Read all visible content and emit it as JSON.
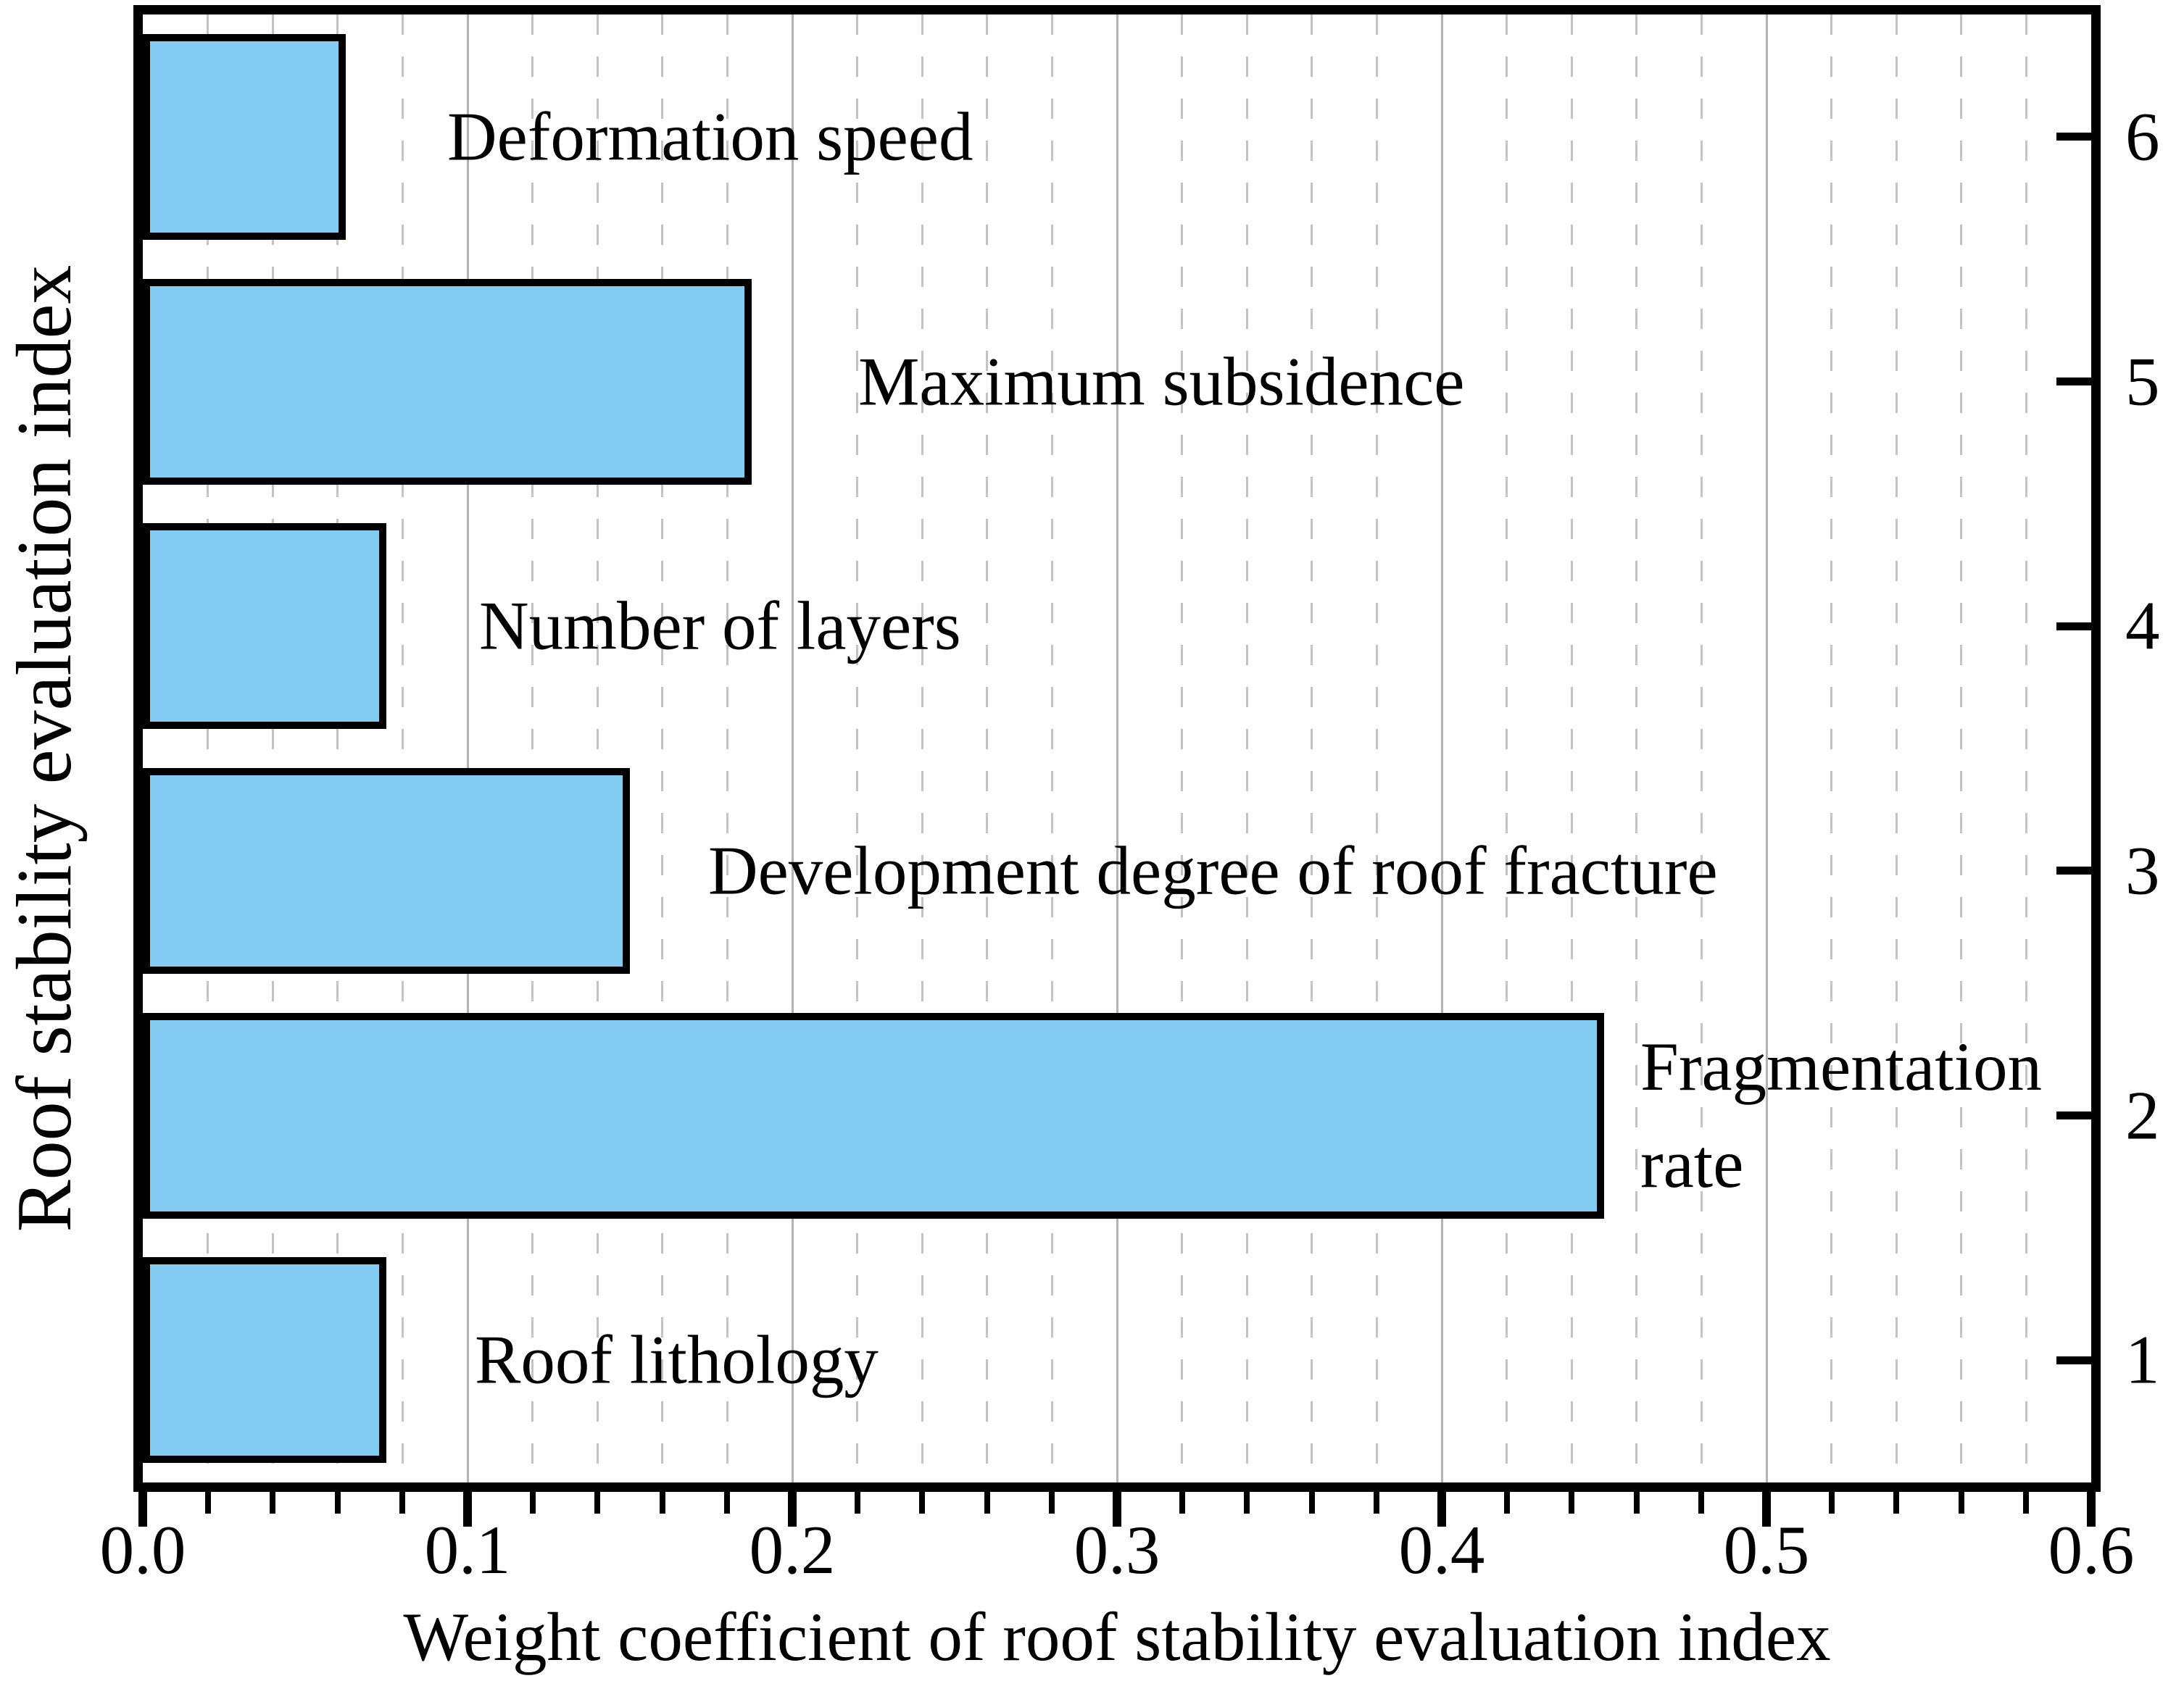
{
  "chart_data": {
    "type": "bar",
    "orientation": "horizontal",
    "title": "",
    "xlabel": "Weight coefficient of roof stability evaluation index",
    "ylabel": "Roof stability evaluation index",
    "xlim": [
      0,
      0.6
    ],
    "x_tick_labels": [
      "0.0",
      "0.1",
      "0.2",
      "0.3",
      "0.4",
      "0.5",
      "0.6"
    ],
    "x_minor_step": 0.02,
    "y_axis_side": "right",
    "grid": {
      "minor_style": "dashed",
      "major_style": "solid",
      "direction": "vertical"
    },
    "bar_color": "#84cbf1",
    "bar_border_color": "#000000",
    "bars": [
      {
        "y_index": "6",
        "label": "Deformation speed",
        "value": 0.0625
      },
      {
        "y_index": "5",
        "label": "Maximum subsidence",
        "value": 0.1875
      },
      {
        "y_index": "4",
        "label": "Number of layers",
        "value": 0.075
      },
      {
        "y_index": "3",
        "label": "Development degree of roof fracture",
        "value": 0.15
      },
      {
        "y_index": "2",
        "label": "Fragmentation rate",
        "value": 0.45
      },
      {
        "y_index": "1",
        "label": "Roof lithology",
        "value": 0.075
      }
    ]
  }
}
